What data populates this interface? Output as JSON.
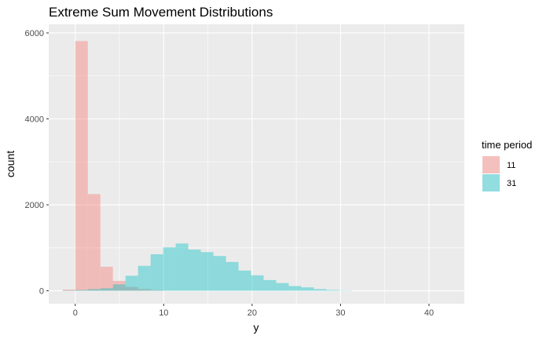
{
  "chart_data": {
    "type": "histogram",
    "title": "Extreme Sum Movement Distributions",
    "xlabel": "y",
    "ylabel": "count",
    "xlim": [
      -3,
      44
    ],
    "ylim": [
      -300,
      6200
    ],
    "x_ticks": [
      0,
      10,
      20,
      30,
      40
    ],
    "y_ticks": [
      0,
      2000,
      4000,
      6000
    ],
    "bin_width": 1.42,
    "legend": {
      "title": "time period",
      "placement": "right",
      "entries": [
        "11",
        "31"
      ]
    },
    "grid": true,
    "series": [
      {
        "name": "11",
        "color": "#F8766D",
        "bins": [
          {
            "x": -0.71,
            "count": 30
          },
          {
            "x": 0.71,
            "count": 5810
          },
          {
            "x": 2.13,
            "count": 2250
          },
          {
            "x": 3.55,
            "count": 560
          },
          {
            "x": 4.97,
            "count": 230
          },
          {
            "x": 6.39,
            "count": 90
          },
          {
            "x": 7.81,
            "count": 40
          },
          {
            "x": 9.23,
            "count": 15
          }
        ]
      },
      {
        "name": "31",
        "color": "#00BFC4",
        "bins": [
          {
            "x": -0.71,
            "count": 10
          },
          {
            "x": 0.71,
            "count": 20
          },
          {
            "x": 2.13,
            "count": 40
          },
          {
            "x": 3.55,
            "count": 60
          },
          {
            "x": 4.97,
            "count": 150
          },
          {
            "x": 6.39,
            "count": 350
          },
          {
            "x": 7.81,
            "count": 580
          },
          {
            "x": 9.23,
            "count": 850
          },
          {
            "x": 10.65,
            "count": 1010
          },
          {
            "x": 12.07,
            "count": 1100
          },
          {
            "x": 13.49,
            "count": 960
          },
          {
            "x": 14.91,
            "count": 900
          },
          {
            "x": 16.33,
            "count": 810
          },
          {
            "x": 17.75,
            "count": 670
          },
          {
            "x": 19.17,
            "count": 470
          },
          {
            "x": 20.59,
            "count": 360
          },
          {
            "x": 22.01,
            "count": 250
          },
          {
            "x": 23.43,
            "count": 180
          },
          {
            "x": 24.85,
            "count": 110
          },
          {
            "x": 26.27,
            "count": 80
          },
          {
            "x": 27.69,
            "count": 40
          },
          {
            "x": 29.11,
            "count": 20
          },
          {
            "x": 30.53,
            "count": 8
          }
        ]
      }
    ]
  }
}
